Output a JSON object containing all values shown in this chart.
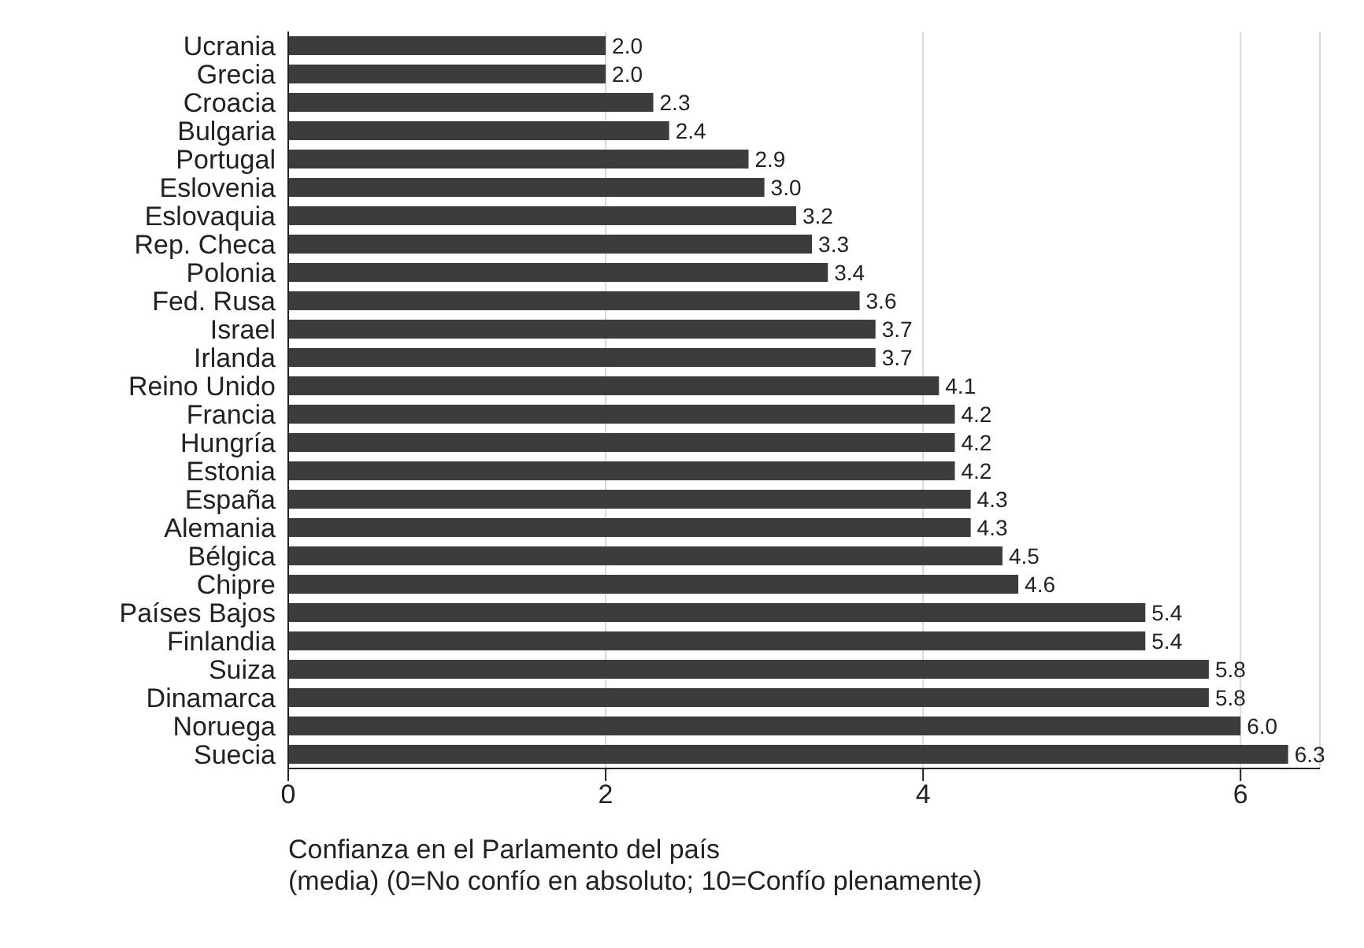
{
  "chart_data": {
    "type": "bar",
    "orientation": "horizontal",
    "xlabel": "Confianza en el Parlamento del país\n(media) (0=No confío en absoluto; 10=Confío plenamente)",
    "categories": [
      "Ucrania",
      "Grecia",
      "Croacia",
      "Bulgaria",
      "Portugal",
      "Eslovenia",
      "Eslovaquia",
      "Rep. Checa",
      "Polonia",
      "Fed. Rusa",
      "Israel",
      "Irlanda",
      "Reino Unido",
      "Francia",
      "Hungría",
      "Estonia",
      "España",
      "Alemania",
      "Bélgica",
      "Chipre",
      "Países Bajos",
      "Finlandia",
      "Suiza",
      "Dinamarca",
      "Noruega",
      "Suecia"
    ],
    "values": [
      2.0,
      2.0,
      2.3,
      2.4,
      2.9,
      3.0,
      3.2,
      3.3,
      3.4,
      3.6,
      3.7,
      3.7,
      4.1,
      4.2,
      4.2,
      4.2,
      4.3,
      4.3,
      4.5,
      4.6,
      5.4,
      5.4,
      5.8,
      5.8,
      6.0,
      6.3
    ],
    "value_labels": [
      "2.0",
      "2.0",
      "2.3",
      "2.4",
      "2.9",
      "3.0",
      "3.2",
      "3.3",
      "3.4",
      "3.6",
      "3.7",
      "3.7",
      "4.1",
      "4.2",
      "4.2",
      "4.2",
      "4.3",
      "4.3",
      "4.5",
      "4.6",
      "5.4",
      "5.4",
      "5.8",
      "5.8",
      "6.0",
      "6.3"
    ],
    "color": "#3c3c3c",
    "xlim": [
      0,
      6.5
    ],
    "xticks": [
      0,
      2,
      4,
      6
    ],
    "grid": "x"
  }
}
